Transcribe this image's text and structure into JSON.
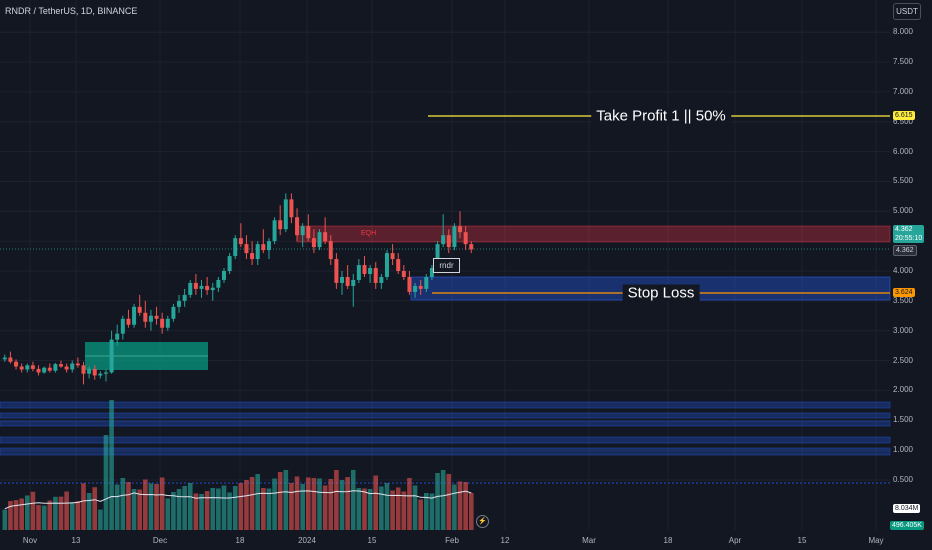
{
  "header": {
    "symbol": "RNDR / TetherUS, 1D, BINANCE",
    "currency_button": "USDT"
  },
  "price_axis": {
    "ticks": [
      "8.000",
      "7.500",
      "7.000",
      "6.500",
      "6.000",
      "5.500",
      "5.000",
      "4.500",
      "4.000",
      "3.500",
      "3.000",
      "2.500",
      "2.000",
      "1.500",
      "1.000",
      "0.500"
    ],
    "tp_tag": "6.615",
    "last_price": "4.362",
    "countdown": "20:55:10",
    "last_price_2": "4.362",
    "sl_tag": "3.624",
    "volume_ma_tag": "8.034M",
    "volume_tag": "496.405K"
  },
  "time_axis": [
    "Nov",
    "13",
    "Dec",
    "18",
    "2024",
    "15",
    "Feb",
    "12",
    "Mar",
    "18",
    "Apr",
    "15",
    "May"
  ],
  "annotations": {
    "take_profit": "Take Profit 1 || 50%",
    "stop_loss": "Stop Loss",
    "eqh": "EQH",
    "rndr_label": "rndr",
    "lightning_icon": "⚡"
  },
  "colors": {
    "background": "#131722",
    "up": "#26a69a",
    "down": "#ef5350",
    "take_profit_line": "#ffeb3b",
    "stop_loss_line": "#ff9800",
    "eqh_zone": "#f23645",
    "demand_zone": "#2962ff",
    "fvg_zone": "#089981"
  },
  "chart_data": {
    "type": "candlestick",
    "title": "RNDR / TetherUS, 1D, BINANCE",
    "x_labels": [
      "Nov",
      "13",
      "Dec",
      "18",
      "2024",
      "15",
      "Feb",
      "12",
      "Mar",
      "18",
      "Apr",
      "15",
      "May"
    ],
    "ylim": [
      0.5,
      8.0
    ],
    "take_profit": 6.615,
    "stop_loss": 3.624,
    "last_price": 4.362,
    "candles_ohlc": [
      [
        2.52,
        2.6,
        2.48,
        2.55
      ],
      [
        2.55,
        2.65,
        2.45,
        2.48
      ],
      [
        2.48,
        2.52,
        2.35,
        2.4
      ],
      [
        2.4,
        2.45,
        2.3,
        2.35
      ],
      [
        2.35,
        2.45,
        2.3,
        2.42
      ],
      [
        2.42,
        2.48,
        2.32,
        2.36
      ],
      [
        2.36,
        2.42,
        2.25,
        2.3
      ],
      [
        2.3,
        2.4,
        2.28,
        2.38
      ],
      [
        2.38,
        2.45,
        2.3,
        2.33
      ],
      [
        2.33,
        2.46,
        2.3,
        2.44
      ],
      [
        2.44,
        2.5,
        2.38,
        2.4
      ],
      [
        2.4,
        2.45,
        2.3,
        2.35
      ],
      [
        2.35,
        2.5,
        2.3,
        2.45
      ],
      [
        2.45,
        2.55,
        2.38,
        2.42
      ],
      [
        2.42,
        2.48,
        2.1,
        2.28
      ],
      [
        2.28,
        2.4,
        2.2,
        2.36
      ],
      [
        2.36,
        2.42,
        2.18,
        2.25
      ],
      [
        2.25,
        2.32,
        2.2,
        2.28
      ],
      [
        2.28,
        2.35,
        2.15,
        2.3
      ],
      [
        2.3,
        3.0,
        2.28,
        2.85
      ],
      [
        2.85,
        3.1,
        2.75,
        2.95
      ],
      [
        2.95,
        3.25,
        2.85,
        3.2
      ],
      [
        3.2,
        3.35,
        3.05,
        3.1
      ],
      [
        3.1,
        3.45,
        3.05,
        3.4
      ],
      [
        3.4,
        3.6,
        3.25,
        3.3
      ],
      [
        3.3,
        3.5,
        3.05,
        3.15
      ],
      [
        3.15,
        3.35,
        3.0,
        3.25
      ],
      [
        3.25,
        3.4,
        3.1,
        3.2
      ],
      [
        3.2,
        3.3,
        2.95,
        3.05
      ],
      [
        3.05,
        3.25,
        3.0,
        3.2
      ],
      [
        3.2,
        3.45,
        3.15,
        3.4
      ],
      [
        3.4,
        3.6,
        3.3,
        3.5
      ],
      [
        3.5,
        3.7,
        3.4,
        3.6
      ],
      [
        3.6,
        3.85,
        3.55,
        3.8
      ],
      [
        3.8,
        3.95,
        3.6,
        3.7
      ],
      [
        3.7,
        3.85,
        3.55,
        3.75
      ],
      [
        3.75,
        3.9,
        3.6,
        3.68
      ],
      [
        3.68,
        3.8,
        3.5,
        3.72
      ],
      [
        3.72,
        3.9,
        3.65,
        3.85
      ],
      [
        3.85,
        4.05,
        3.8,
        4.0
      ],
      [
        4.0,
        4.3,
        3.95,
        4.25
      ],
      [
        4.25,
        4.6,
        4.2,
        4.55
      ],
      [
        4.55,
        4.8,
        4.4,
        4.45
      ],
      [
        4.45,
        4.6,
        4.2,
        4.3
      ],
      [
        4.3,
        4.5,
        4.1,
        4.2
      ],
      [
        4.2,
        4.5,
        4.1,
        4.45
      ],
      [
        4.45,
        4.7,
        4.3,
        4.35
      ],
      [
        4.35,
        4.55,
        4.2,
        4.5
      ],
      [
        4.5,
        4.9,
        4.45,
        4.85
      ],
      [
        4.85,
        5.1,
        4.6,
        4.7
      ],
      [
        4.7,
        5.3,
        4.65,
        5.2
      ],
      [
        5.2,
        5.3,
        4.8,
        4.9
      ],
      [
        4.9,
        5.05,
        4.5,
        4.6
      ],
      [
        4.6,
        4.8,
        4.4,
        4.75
      ],
      [
        4.75,
        4.95,
        4.5,
        4.55
      ],
      [
        4.55,
        4.7,
        4.3,
        4.4
      ],
      [
        4.4,
        4.7,
        4.35,
        4.65
      ],
      [
        4.65,
        4.9,
        4.45,
        4.5
      ],
      [
        4.5,
        4.6,
        4.1,
        4.2
      ],
      [
        4.2,
        4.3,
        3.7,
        3.8
      ],
      [
        3.8,
        4.0,
        3.6,
        3.9
      ],
      [
        3.9,
        4.1,
        3.7,
        3.75
      ],
      [
        3.75,
        3.95,
        3.4,
        3.85
      ],
      [
        3.85,
        4.2,
        3.8,
        4.1
      ],
      [
        4.1,
        4.25,
        3.9,
        3.95
      ],
      [
        3.95,
        4.1,
        3.8,
        4.05
      ],
      [
        4.05,
        4.15,
        3.7,
        3.8
      ],
      [
        3.8,
        3.95,
        3.7,
        3.9
      ],
      [
        3.9,
        4.35,
        3.85,
        4.3
      ],
      [
        4.3,
        4.45,
        4.1,
        4.2
      ],
      [
        4.2,
        4.3,
        3.95,
        4.0
      ],
      [
        4.0,
        4.1,
        3.85,
        3.9
      ],
      [
        3.9,
        4.0,
        3.6,
        3.65
      ],
      [
        3.65,
        3.8,
        3.55,
        3.75
      ],
      [
        3.75,
        3.85,
        3.6,
        3.7
      ],
      [
        3.7,
        3.95,
        3.65,
        3.9
      ],
      [
        3.9,
        4.1,
        3.85,
        4.05
      ],
      [
        4.05,
        4.5,
        4.0,
        4.45
      ],
      [
        4.45,
        4.95,
        4.4,
        4.6
      ],
      [
        4.6,
        4.7,
        4.3,
        4.4
      ],
      [
        4.4,
        4.8,
        4.35,
        4.75
      ],
      [
        4.75,
        5.0,
        4.55,
        4.65
      ],
      [
        4.65,
        4.75,
        4.35,
        4.45
      ],
      [
        4.45,
        4.5,
        4.3,
        4.36
      ]
    ],
    "volume_ma": 8.034,
    "volume_last": 496.405
  }
}
